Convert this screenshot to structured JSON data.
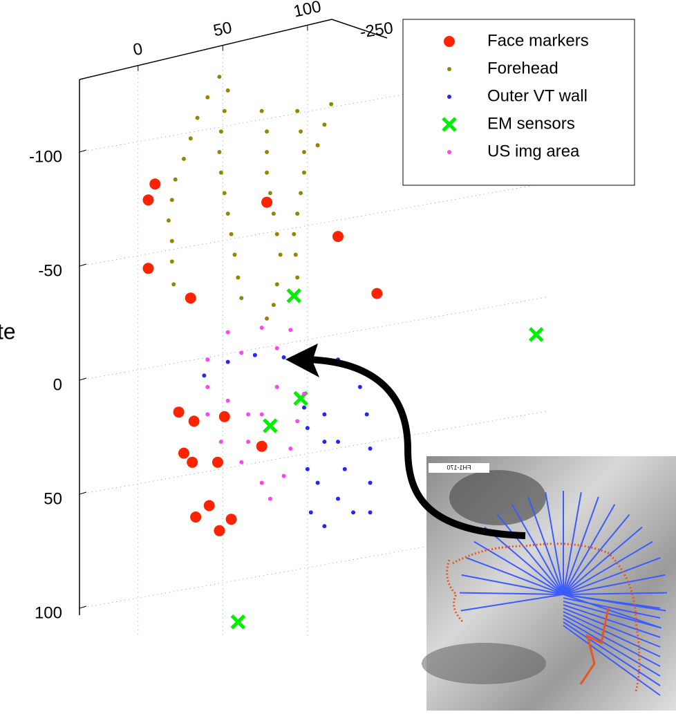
{
  "chart_data": {
    "type": "scatter",
    "annotation": "te",
    "xlim": [
      -35,
      240
    ],
    "xticks": [
      0,
      50,
      100
    ],
    "ylim": [
      -140,
      110
    ],
    "yticks": [
      -100,
      -50,
      0,
      50,
      100
    ],
    "zticks": [
      -250
    ],
    "grid": true,
    "legend": "upper right",
    "inset_label": "FH1-170",
    "series": [
      {
        "name": "Face markers",
        "color": "#ff2200",
        "marker": "o",
        "x": [
          10,
          6,
          76,
          118,
          6,
          31,
          141,
          24,
          33,
          51,
          73,
          27,
          32,
          47,
          42,
          34,
          55,
          48
        ],
        "y": [
          -86,
          -79,
          -78,
          -63,
          -49,
          -36,
          -38,
          14,
          18,
          16,
          29,
          32,
          36,
          36,
          55,
          60,
          61,
          66
        ]
      },
      {
        "name": "Forehead",
        "color": "#8f8800",
        "marker": ".",
        "x": [
          48,
          41,
          35,
          31,
          27,
          22,
          20,
          18,
          20,
          20,
          21,
          53,
          51,
          49,
          48,
          49,
          51,
          53,
          55,
          57,
          59,
          61,
          73,
          76,
          76,
          76,
          78,
          80,
          82,
          84,
          82,
          80,
          76,
          94,
          96,
          98,
          98,
          96,
          94,
          92,
          93,
          94,
          114,
          110,
          106
        ],
        "y": [
          -133,
          -124,
          -115,
          -106,
          -97,
          -88,
          -79,
          -70,
          -61,
          -52,
          -42,
          -127,
          -118,
          -109,
          -100,
          -91,
          -82,
          -73,
          -64,
          -55,
          -45,
          -36,
          -118,
          -109,
          -100,
          -91,
          -82,
          -73,
          -64,
          -55,
          -42,
          -33,
          -27,
          -118,
          -109,
          -100,
          -91,
          -82,
          -73,
          -64,
          -55,
          -45,
          -121,
          -112,
          -103
        ]
      },
      {
        "name": "Outer VT wall",
        "color": "#2525ff",
        "marker": ".",
        "x": [
          39,
          53,
          69,
          86,
          102,
          118,
          131,
          135,
          137,
          137,
          137,
          127,
          118,
          110,
          102,
          100,
          100,
          98,
          110,
          118,
          122,
          110,
          106
        ],
        "y": [
          -2,
          -8,
          -11,
          -10,
          -5,
          -9,
          3,
          15,
          30,
          45,
          58,
          58,
          52,
          64,
          58,
          39,
          21,
          12,
          15,
          27,
          39,
          27,
          45
        ]
      },
      {
        "name": "EM sensors",
        "color": "#00ee00",
        "marker": "x",
        "x": [
          92,
          235,
          96,
          78,
          59
        ],
        "y": [
          -37,
          -20,
          8,
          20,
          106
        ]
      },
      {
        "name": "US img area",
        "color": "#ff44ee",
        "marker": ".",
        "x": [
          53,
          73,
          90,
          41,
          61,
          82,
          98,
          41,
          53,
          65,
          41,
          49,
          61,
          73,
          78,
          86,
          90,
          94,
          98,
          82,
          73,
          65
        ],
        "y": [
          -21,
          -23,
          -22,
          -9,
          -12,
          -14,
          -9,
          3,
          9,
          15,
          15,
          27,
          36,
          45,
          52,
          42,
          30,
          18,
          6,
          3,
          15,
          27
        ]
      }
    ]
  }
}
